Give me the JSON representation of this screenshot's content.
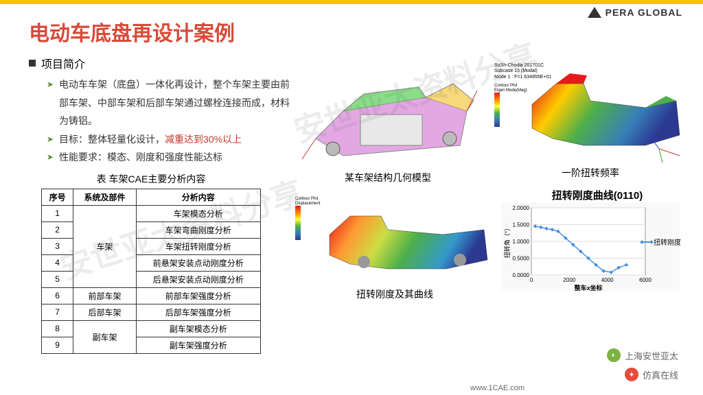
{
  "logo_text": "PERA GLOBAL",
  "title": "电动车底盘再设计案例",
  "section_header": "项目简介",
  "bullets": [
    {
      "t": "电动车车架（底盘）一体化再设计，整个车架主要由前部车架、中部车架和后部车架通过螺栓连接而成，材料为铸铝。"
    },
    {
      "pre": "目标：整体轻量化设计，",
      "red": "减重达到30%以上"
    },
    {
      "t": "性能要求：模态、刚度和强度性能达标"
    }
  ],
  "table_caption": "表 车架CAE主要分析内容",
  "table": {
    "headers": [
      "序号",
      "系统及部件",
      "分析内容"
    ],
    "groups": [
      {
        "part": "车架",
        "rows": [
          [
            "1",
            "车架模态分析"
          ],
          [
            "2",
            "车架弯曲刚度分析"
          ],
          [
            "3",
            "车架扭转刚度分析"
          ],
          [
            "4",
            "前悬架安装点动刚度分析"
          ],
          [
            "5",
            "后悬架安装点动刚度分析"
          ]
        ]
      },
      {
        "part": "前部车架",
        "rows": [
          [
            "6",
            "前部车架强度分析"
          ]
        ]
      },
      {
        "part": "后部车架",
        "rows": [
          [
            "7",
            "后部车架强度分析"
          ]
        ]
      },
      {
        "part": "副车架",
        "rows": [
          [
            "8",
            "副车架模态分析"
          ],
          [
            "9",
            "副车架强度分析"
          ]
        ]
      }
    ]
  },
  "fig_labels": {
    "geom": "某车架结构几何模型",
    "mode": "一阶扭转频率",
    "stiff": "扭转刚度及其曲线",
    "chart": "扭转刚度曲线(0110)"
  },
  "contour1": {
    "title": "Contour Plot",
    "sub": "Eigen Mode(Mag)",
    "vals": [
      "5.511E-0C",
      "1.053E-0C",
      "4.504E-0C",
      "3.855E-0C",
      "3.305E-0C",
      "2.210E-0C",
      "2.103E-0C",
      "7.405E-01",
      "1.510E-01"
    ]
  },
  "contour2": {
    "title": "Contour Plot",
    "sub": "Displacement",
    "vals": [
      "1.171E+0",
      "1.041E+0",
      "9.365E-01",
      "6.356E-01",
      "5.565E-01",
      "3.13E-01",
      "7.173E-01",
      "1.174E-01",
      "-3.023E-01",
      "-4.365E-01"
    ]
  },
  "mode_info": {
    "l1": "SuSh-Chodia 201701C",
    "l2": "Subcase 15 (Modal)",
    "l3": "Mode 1 : F=1.634855E+01"
  },
  "chart": {
    "title": "扭转刚度曲线(0110)",
    "series_name": "扭转刚度",
    "xlabel": "整车x坐标",
    "ylabel": "扭转角（°）",
    "ylim": [
      0,
      2.0
    ],
    "yticks": [
      "0.0000",
      "0.5000",
      "1.0000",
      "1.5000",
      "2.0000"
    ],
    "xlim": [
      0,
      6000
    ],
    "xticks": [
      "0",
      "2000",
      "4000",
      "6000"
    ],
    "points": [
      [
        200,
        1.45
      ],
      [
        500,
        1.42
      ],
      [
        800,
        1.38
      ],
      [
        1100,
        1.35
      ],
      [
        1400,
        1.3
      ],
      [
        1800,
        1.1
      ],
      [
        2200,
        0.9
      ],
      [
        2600,
        0.7
      ],
      [
        3000,
        0.5
      ],
      [
        3400,
        0.3
      ],
      [
        3800,
        0.12
      ],
      [
        4200,
        0.08
      ],
      [
        4600,
        0.22
      ],
      [
        5000,
        0.3
      ]
    ],
    "line_color": "#4a90d9",
    "marker_color": "#4a90d9",
    "bg": "#ffffff",
    "grid": "#dddddd"
  },
  "watermark": "安世亚太资料分享",
  "badges": [
    {
      "icon": "◐",
      "text": "上海安世亚太"
    },
    {
      "icon": "✦",
      "text": "仿真在线"
    }
  ],
  "footer": "www.1CAE.com"
}
